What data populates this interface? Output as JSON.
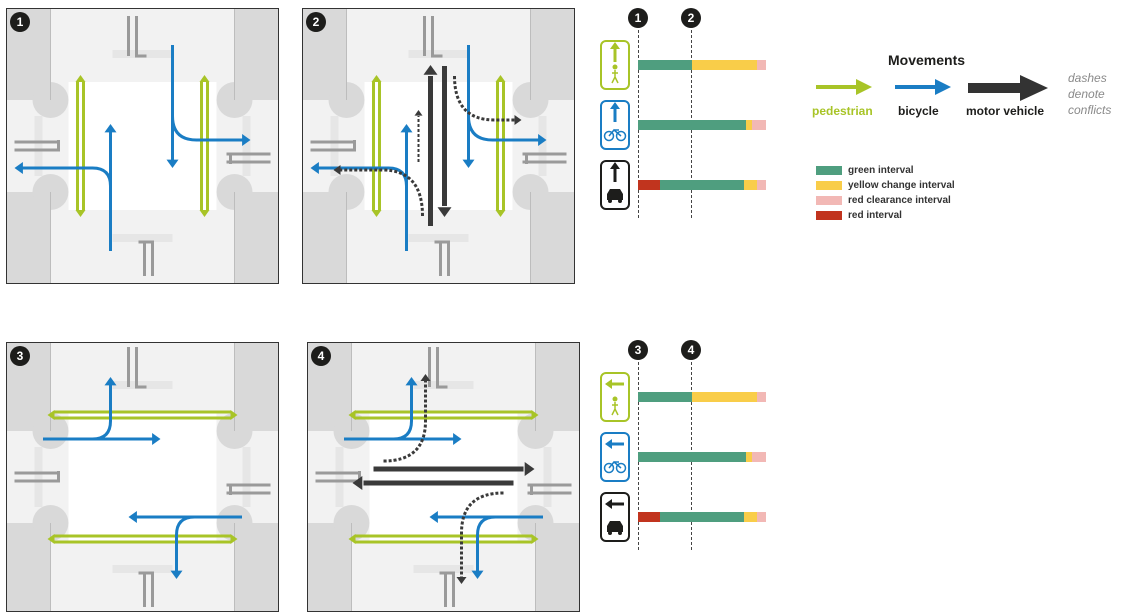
{
  "panels": [
    {
      "number": "1",
      "orientation": "ns"
    },
    {
      "number": "2",
      "orientation": "ns"
    },
    {
      "number": "3",
      "orientation": "ew"
    },
    {
      "number": "4",
      "orientation": "ew"
    }
  ],
  "timing_top": {
    "markers": [
      "1",
      "2"
    ],
    "rows": [
      {
        "mode": "pedestrian",
        "icon": "pedestrian-icon",
        "color": "#a8c427",
        "segments": [
          {
            "interval": "green",
            "fraction": 0.42
          },
          {
            "interval": "yellow",
            "fraction": 0.51
          },
          {
            "interval": "red_clearance",
            "fraction": 0.07
          }
        ]
      },
      {
        "mode": "bicycle",
        "icon": "bicycle-icon",
        "color": "#1a7dc4",
        "segments": [
          {
            "interval": "green",
            "fraction": 0.84
          },
          {
            "interval": "yellow",
            "fraction": 0.05
          },
          {
            "interval": "red_clearance",
            "fraction": 0.11
          }
        ]
      },
      {
        "mode": "motor vehicle",
        "icon": "car-icon",
        "color": "#1d1d1b",
        "segments": [
          {
            "interval": "red",
            "fraction": 0.17
          },
          {
            "interval": "green",
            "fraction": 0.66
          },
          {
            "interval": "yellow",
            "fraction": 0.1
          },
          {
            "interval": "red_clearance",
            "fraction": 0.07
          }
        ]
      }
    ]
  },
  "timing_bottom": {
    "markers": [
      "3",
      "4"
    ],
    "rows": [
      {
        "mode": "pedestrian",
        "icon": "pedestrian-icon",
        "color": "#a8c427",
        "segments": [
          {
            "interval": "green",
            "fraction": 0.42
          },
          {
            "interval": "yellow",
            "fraction": 0.51
          },
          {
            "interval": "red_clearance",
            "fraction": 0.07
          }
        ]
      },
      {
        "mode": "bicycle",
        "icon": "bicycle-icon",
        "color": "#1a7dc4",
        "segments": [
          {
            "interval": "green",
            "fraction": 0.84
          },
          {
            "interval": "yellow",
            "fraction": 0.05
          },
          {
            "interval": "red_clearance",
            "fraction": 0.11
          }
        ]
      },
      {
        "mode": "motor vehicle",
        "icon": "car-icon",
        "color": "#1d1d1b",
        "segments": [
          {
            "interval": "red",
            "fraction": 0.17
          },
          {
            "interval": "green",
            "fraction": 0.66
          },
          {
            "interval": "yellow",
            "fraction": 0.1
          },
          {
            "interval": "red_clearance",
            "fraction": 0.07
          }
        ]
      }
    ]
  },
  "legend": {
    "title": "Movements",
    "movements": [
      {
        "label": "pedestrian",
        "color": "#a8c427"
      },
      {
        "label": "bicycle",
        "color": "#1a7dc4"
      },
      {
        "label": "motor vehicle",
        "color": "#333333"
      }
    ],
    "dashes_note": [
      "dashes",
      "denote",
      "conflicts"
    ],
    "intervals": [
      {
        "key": "green",
        "label": "green interval",
        "color": "#4f9e7f"
      },
      {
        "key": "yellow",
        "label": "yellow change interval",
        "color": "#f9cd49"
      },
      {
        "key": "red_clearance",
        "label": "red clearance interval",
        "color": "#f2b8b5"
      },
      {
        "key": "red",
        "label": "red interval",
        "color": "#c1341e"
      }
    ]
  }
}
